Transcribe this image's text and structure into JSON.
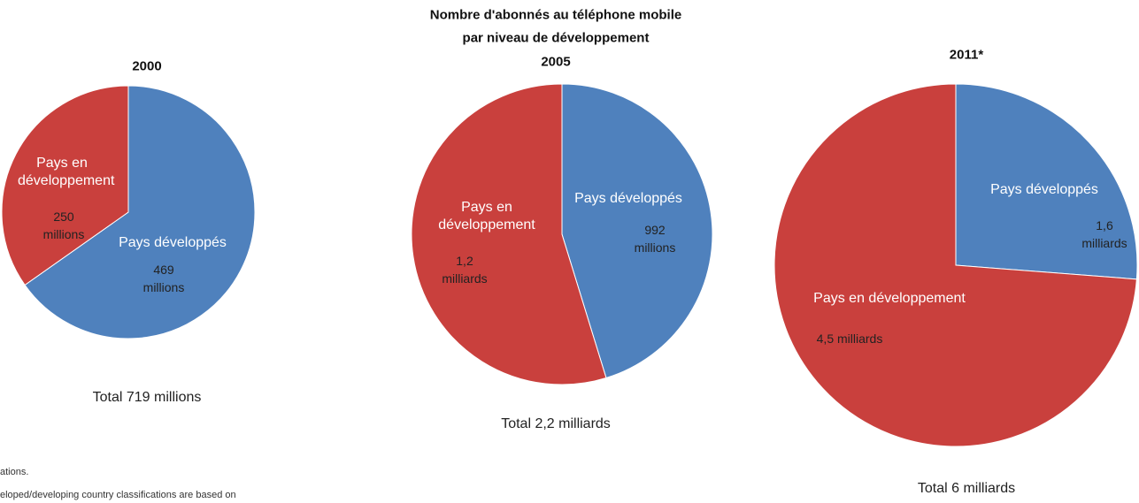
{
  "title_lines": [
    "Nombre d'abonnés au téléphone mobile",
    "par niveau de développement"
  ],
  "notes": [
    "ations.",
    "eloped/developing country classifications are based on"
  ],
  "chart_data": [
    {
      "type": "pie",
      "title": "2000",
      "categories": [
        "Pays développés",
        "Pays en développement"
      ],
      "values": [
        469,
        250
      ],
      "value_labels": [
        "469 millions",
        "250 millions"
      ],
      "colors": [
        "#4f81bd",
        "#c9403d"
      ],
      "total_label": "Total  719 millions"
    },
    {
      "type": "pie",
      "title": "2005",
      "categories": [
        "Pays développés",
        "Pays en développement"
      ],
      "values": [
        992,
        1200
      ],
      "value_labels": [
        "992 millions",
        "1,2 milliards"
      ],
      "colors": [
        "#4f81bd",
        "#c9403d"
      ],
      "total_label": "Total  2,2 milliards"
    },
    {
      "type": "pie",
      "title": "2011*",
      "categories": [
        "Pays développés",
        "Pays en développement"
      ],
      "values": [
        1600,
        4500
      ],
      "value_labels": [
        "1,6 milliards",
        "4,5 milliards"
      ],
      "colors": [
        "#4f81bd",
        "#c9403d"
      ],
      "total_label": "Total  6 milliards"
    }
  ]
}
